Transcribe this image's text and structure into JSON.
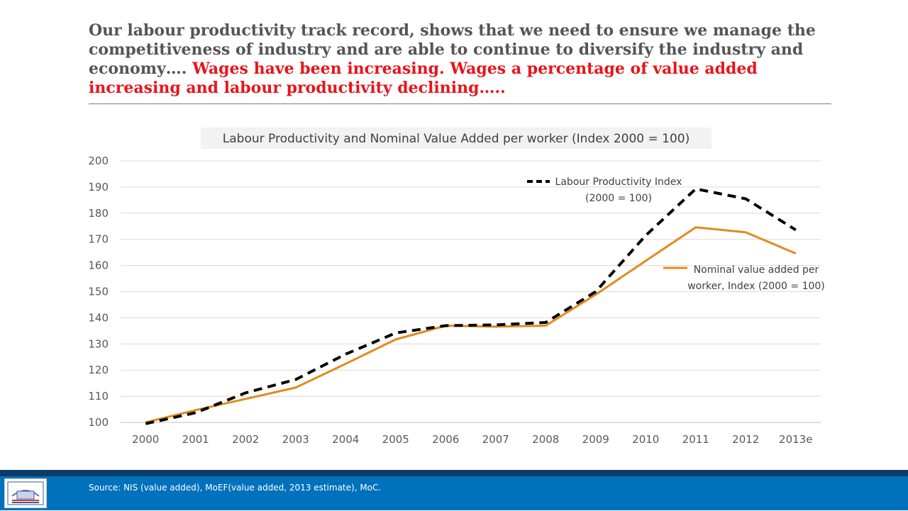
{
  "headline": {
    "part1": "Our labour productivity track record, shows that we need to ensure we manage the competitiveness of industry and are able to continue to diversify the industry and economy…. ",
    "part2": "Wages have been increasing. Wages a percentage of value added increasing and labour productivity declining….."
  },
  "footer": {
    "source": "Source: NIS (value added), MoEF(value added, 2013 estimate), MoC."
  },
  "colors": {
    "labour_productivity": "#000000",
    "nominal_value_added": "#e38a1e",
    "headline_red": "#e8141b",
    "footer_blue": "#0071bc"
  },
  "chart_data": {
    "type": "line",
    "title": "Labour Productivity and Nominal Value Added per worker (Index 2000 = 100)",
    "xlabel": "",
    "ylabel": "",
    "categories": [
      "2000",
      "2001",
      "2002",
      "2003",
      "2004",
      "2005",
      "2006",
      "2007",
      "2008",
      "2009",
      "2010",
      "2011",
      "2012",
      "2013e"
    ],
    "ylim": [
      100,
      200
    ],
    "yticks": [
      100,
      110,
      120,
      130,
      140,
      150,
      160,
      170,
      180,
      190,
      200
    ],
    "grid": true,
    "series": [
      {
        "name": "Labour Productivity Index (2000 = 100)",
        "name_lines": [
          "Labour Productivity Index",
          "(2000 = 100)"
        ],
        "style": "dashed",
        "values": [
          99.5,
          103.7,
          111.3,
          116.4,
          126.1,
          134.2,
          137.0,
          137.3,
          138.2,
          150.0,
          171.5,
          189.3,
          185.5,
          173.6
        ]
      },
      {
        "name": "Nominal value added per worker, Index (2000 = 100)",
        "name_lines": [
          "Nominal value added per",
          "worker, Index (2000 = 100)"
        ],
        "style": "solid",
        "values": [
          100.0,
          104.7,
          109.0,
          113.3,
          122.4,
          131.7,
          137.0,
          136.6,
          137.0,
          148.9,
          161.8,
          174.6,
          172.7,
          164.6
        ]
      }
    ]
  }
}
